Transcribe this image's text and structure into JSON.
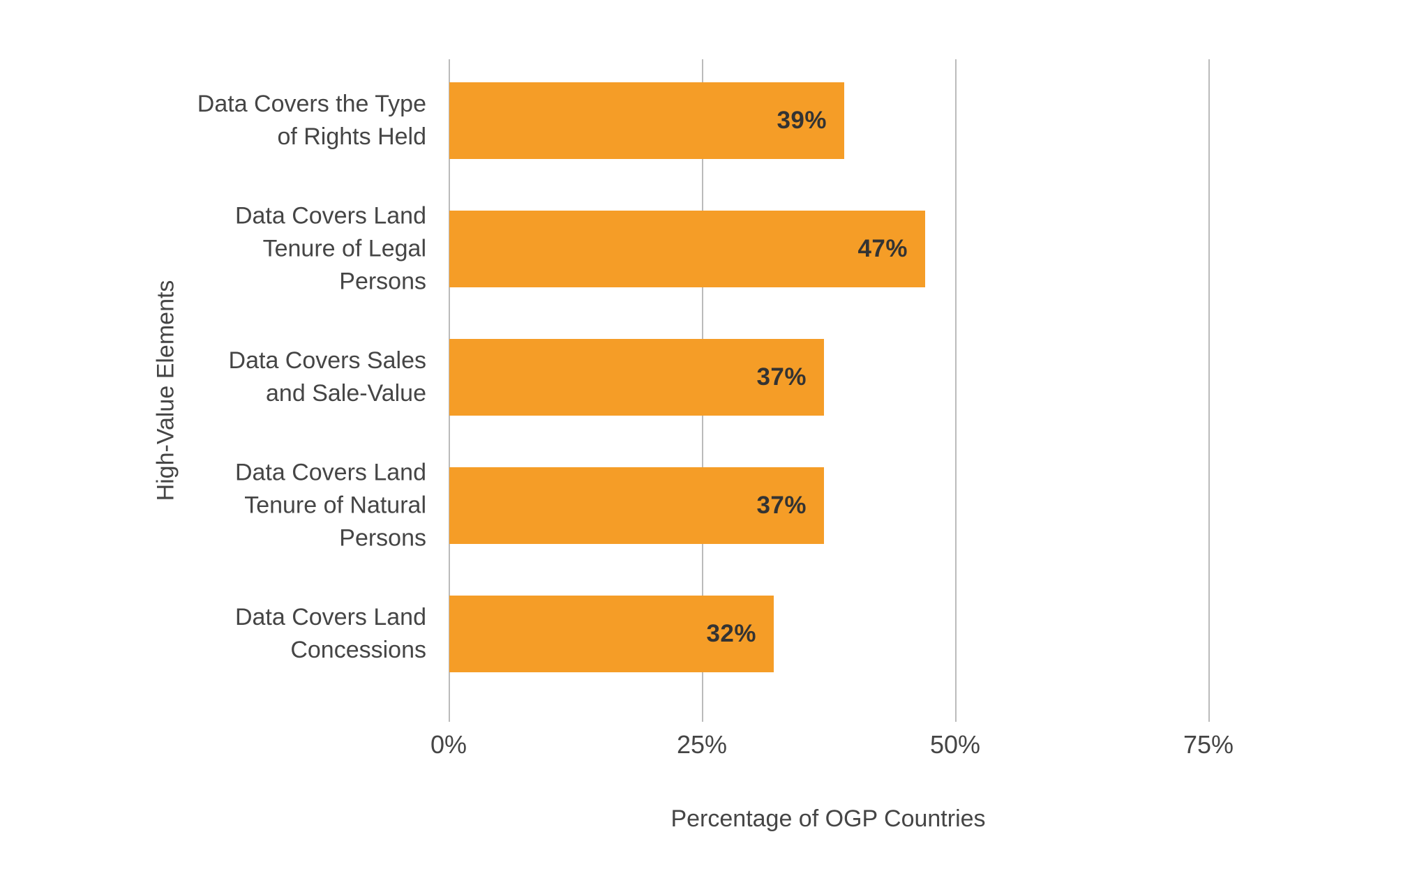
{
  "chart_data": {
    "type": "bar",
    "orientation": "horizontal",
    "categories": [
      "Data Covers the Type of Rights Held",
      "Data Covers Land Tenure of Legal Persons",
      "Data Covers Sales and Sale-Value",
      "Data Covers Land Tenure of Natural Persons",
      "Data Covers Land Concessions"
    ],
    "values": [
      39,
      47,
      37,
      37,
      32
    ],
    "value_labels": [
      "39%",
      "47%",
      "37%",
      "37%",
      "32%"
    ],
    "xlabel": "Percentage of OGP Countries",
    "ylabel": "High-Value Elements",
    "x_ticks": [
      0,
      25,
      50,
      75
    ],
    "x_tick_labels": [
      "0%",
      "25%",
      "50%",
      "75%"
    ],
    "xlim": [
      0,
      88
    ],
    "grid": "vertical-gridlines",
    "legend": "none",
    "bar_color": "#f59d27",
    "value_label_color": "#333333",
    "axis_text_color": "#454545",
    "gridline_color": "#bbbbbb"
  }
}
